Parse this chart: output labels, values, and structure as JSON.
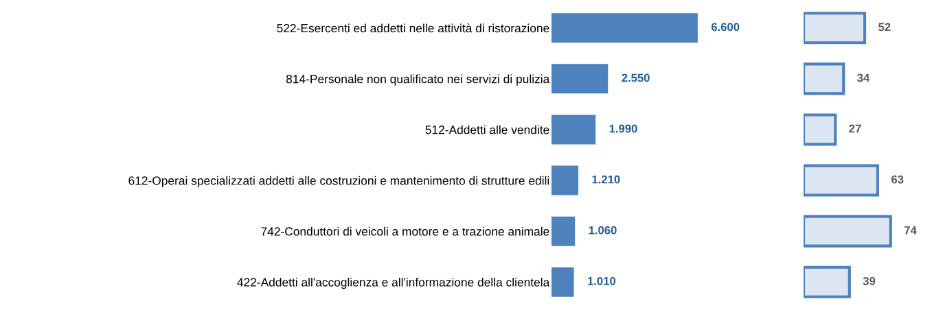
{
  "chart_data": [
    {
      "type": "bar",
      "orientation": "horizontal",
      "categories": [
        "522-Esercenti ed addetti nelle attività di ristorazione",
        "814-Personale non qualificato nei servizi di pulizia",
        "512-Addetti alle vendite",
        "612-Operai specializzati addetti alle costruzioni e mantenimento di strutture edili",
        "742-Conduttori di veicoli a motore e a trazione animale",
        "422-Addetti all'accoglienza e all'informazione della clientela"
      ],
      "values": [
        6600,
        2550,
        1990,
        1210,
        1060,
        1010
      ],
      "color": "#4f81bd",
      "value_labels": [
        "6.600",
        "2.550",
        "1.990",
        "1.210",
        "1.060",
        "1.010"
      ]
    },
    {
      "type": "bar",
      "orientation": "horizontal",
      "categories": [
        null,
        null,
        null,
        null,
        null,
        null
      ],
      "values": [
        52,
        34,
        27,
        63,
        74,
        39
      ],
      "color": "#dce6f2",
      "data_labels": true
    }
  ]
}
